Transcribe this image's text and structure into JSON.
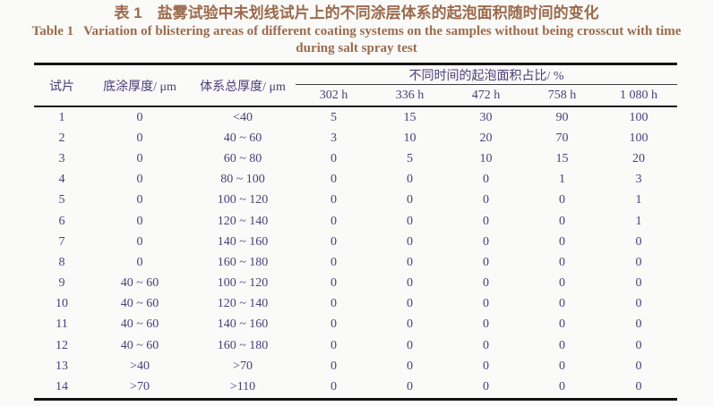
{
  "page": {
    "background": "#fafaf8",
    "title_color": "#9b6a4c",
    "table_text_color": "#4b3e7a",
    "rule_color": "#141414"
  },
  "title": {
    "zh": "表 1　盐雾试验中未划线试片上的不同涂层体系的起泡面积随时间的变化",
    "en_line1": "Table 1   Variation of blistering areas of different coating systems on the samples without being crosscut with time",
    "en_line2": "during salt spray test"
  },
  "table": {
    "headers": {
      "sample": "试片",
      "primer_thickness": "底涂厚度/ μm",
      "total_thickness": "体系总厚度/ μm",
      "group": "不同时间的起泡面积占比/ %",
      "times": [
        "302 h",
        "336 h",
        "472 h",
        "758 h",
        "1 080 h"
      ]
    },
    "rows": [
      {
        "sample": "1",
        "primer": "0",
        "total": "<40",
        "values": [
          "5",
          "15",
          "30",
          "90",
          "100"
        ]
      },
      {
        "sample": "2",
        "primer": "0",
        "total": "40 ~ 60",
        "values": [
          "3",
          "10",
          "20",
          "70",
          "100"
        ]
      },
      {
        "sample": "3",
        "primer": "0",
        "total": "60 ~ 80",
        "values": [
          "0",
          "5",
          "10",
          "15",
          "20"
        ]
      },
      {
        "sample": "4",
        "primer": "0",
        "total": "80 ~ 100",
        "values": [
          "0",
          "0",
          "0",
          "1",
          "3"
        ]
      },
      {
        "sample": "5",
        "primer": "0",
        "total": "100 ~ 120",
        "values": [
          "0",
          "0",
          "0",
          "0",
          "1"
        ]
      },
      {
        "sample": "6",
        "primer": "0",
        "total": "120 ~ 140",
        "values": [
          "0",
          "0",
          "0",
          "0",
          "1"
        ]
      },
      {
        "sample": "7",
        "primer": "0",
        "total": "140 ~ 160",
        "values": [
          "0",
          "0",
          "0",
          "0",
          "0"
        ]
      },
      {
        "sample": "8",
        "primer": "0",
        "total": "160 ~ 180",
        "values": [
          "0",
          "0",
          "0",
          "0",
          "0"
        ]
      },
      {
        "sample": "9",
        "primer": "40 ~ 60",
        "total": "100 ~ 120",
        "values": [
          "0",
          "0",
          "0",
          "0",
          "0"
        ]
      },
      {
        "sample": "10",
        "primer": "40 ~ 60",
        "total": "120 ~ 140",
        "values": [
          "0",
          "0",
          "0",
          "0",
          "0"
        ]
      },
      {
        "sample": "11",
        "primer": "40 ~ 60",
        "total": "140 ~ 160",
        "values": [
          "0",
          "0",
          "0",
          "0",
          "0"
        ]
      },
      {
        "sample": "12",
        "primer": "40 ~ 60",
        "total": "160 ~ 180",
        "values": [
          "0",
          "0",
          "0",
          "0",
          "0"
        ]
      },
      {
        "sample": "13",
        "primer": ">40",
        "total": ">70",
        "values": [
          "0",
          "0",
          "0",
          "0",
          "0"
        ]
      },
      {
        "sample": "14",
        "primer": ">70",
        "total": ">110",
        "values": [
          "0",
          "0",
          "0",
          "0",
          "0"
        ]
      }
    ]
  }
}
